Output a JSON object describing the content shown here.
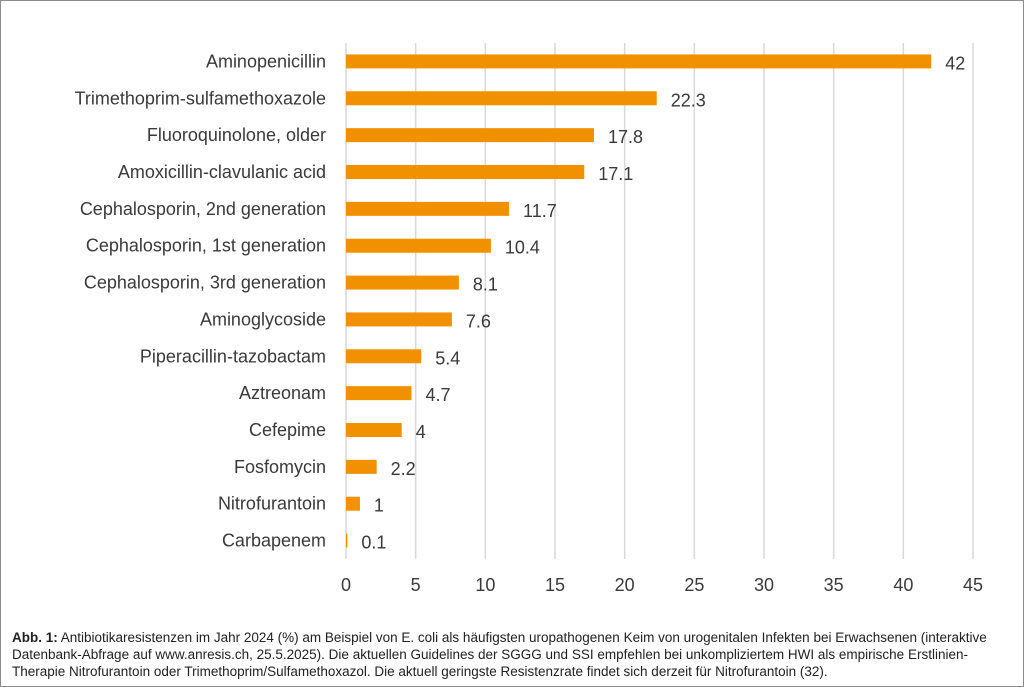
{
  "chart_data": {
    "type": "bar",
    "orientation": "horizontal",
    "categories": [
      "Aminopenicillin",
      "Trimethoprim-sulfamethoxazole",
      "Fluoroquinolone, older",
      "Amoxicillin-clavulanic acid",
      "Cephalosporin, 2nd generation",
      "Cephalosporin, 1st generation",
      "Cephalosporin, 3rd generation",
      "Aminoglycoside",
      "Piperacillin-tazobactam",
      "Aztreonam",
      "Cefepime",
      "Fosfomycin",
      "Nitrofurantoin",
      "Carbapenem"
    ],
    "values": [
      42,
      22.3,
      17.8,
      17.1,
      11.7,
      10.4,
      8.1,
      7.6,
      5.4,
      4.7,
      4,
      2.2,
      1,
      0.1
    ],
    "value_labels": [
      "42",
      "22.3",
      "17.8",
      "17.1",
      "11.7",
      "10.4",
      "8.1",
      "7.6",
      "5.4",
      "4.7",
      "4",
      "2.2",
      "1",
      "0.1"
    ],
    "xlim": [
      0,
      45
    ],
    "xticks": [
      0,
      5,
      10,
      15,
      20,
      25,
      30,
      35,
      40,
      45
    ],
    "grid": true,
    "bar_color": "#f29100",
    "grid_color": "#d9d9d9",
    "title": "",
    "xlabel": "",
    "ylabel": ""
  },
  "caption": {
    "label": "Abb. 1:",
    "text": " Antibiotikaresistenzen im Jahr 2024 (%) am Beispiel von E. coli als häufigsten uropathogenen Keim von urogenitalen Infekten bei Erwachsenen (interaktive Datenbank-Abfrage auf www.anresis.ch, 25.5.2025). Die aktuellen Guidelines der SGGG und SSI empfehlen bei unkompliziertem HWI als empirische Erstlinien-Therapie Nitrofurantoin oder Trimethoprim/Sulfamethoxazol. Die aktuell geringste Resistenzrate findet sich derzeit für Nitrofurantoin (32)."
  }
}
